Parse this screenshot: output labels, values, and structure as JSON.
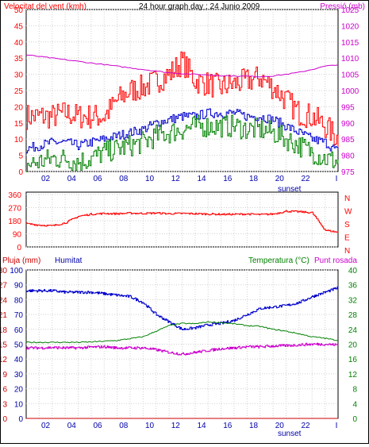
{
  "chart_data": [
    {
      "type": "line",
      "title": "24 hour graph day : 24 Junio 2009",
      "left_axis_label": "Velocitat del vent (kmh)",
      "right_axis_label": "Pressió (mb)",
      "left_ticks": [
        "0",
        "5",
        "10",
        "15",
        "20",
        "25",
        "30",
        "35",
        "40",
        "45",
        "50"
      ],
      "right_ticks": [
        "975",
        "980",
        "985",
        "990",
        "995",
        "1000",
        "1005",
        "1010",
        "1015",
        "1020",
        "1025"
      ],
      "ylim_left": [
        0,
        50
      ],
      "ylim_right": [
        975,
        1025
      ],
      "x_ticks": [
        "02",
        "04",
        "06",
        "08",
        "10",
        "12",
        "14",
        "16",
        "18",
        "20",
        "22",
        "I"
      ],
      "sunset_label": "sunset",
      "x": [
        0,
        1,
        2,
        3,
        4,
        5,
        6,
        7,
        8,
        9,
        10,
        11,
        12,
        13,
        14,
        15,
        16,
        17,
        18,
        19,
        20,
        21,
        22,
        23,
        24
      ],
      "series": [
        {
          "key": "gust",
          "axis": "left",
          "color": "#ff0000",
          "values": [
            17,
            17,
            17,
            18,
            17,
            17,
            17,
            22,
            25,
            26,
            28,
            30,
            34,
            28,
            27,
            26,
            27,
            28,
            29,
            26,
            22,
            18,
            17,
            14,
            10
          ]
        },
        {
          "key": "wind_avg",
          "axis": "left",
          "color": "#0000cc",
          "values": [
            7,
            8,
            9,
            9,
            8,
            9,
            10,
            11,
            12,
            13,
            15,
            16,
            17,
            17,
            18,
            18,
            18,
            17,
            17,
            16,
            14,
            12,
            10,
            9,
            6
          ]
        },
        {
          "key": "wind_low",
          "axis": "left",
          "color": "#008000",
          "values": [
            2,
            3,
            4,
            4,
            3,
            4,
            6,
            7,
            8,
            9,
            11,
            12,
            13,
            14,
            14,
            14,
            14,
            13,
            13,
            12,
            10,
            8,
            6,
            4,
            3
          ]
        },
        {
          "key": "pressure",
          "axis": "right",
          "color": "#cc00cc",
          "values": [
            1011,
            1010.5,
            1010,
            1009.5,
            1009,
            1008.5,
            1008,
            1007.5,
            1007,
            1006.5,
            1006,
            1005.5,
            1005.2,
            1005,
            1004.8,
            1004.6,
            1004.5,
            1004.4,
            1004.3,
            1004.5,
            1005,
            1005.6,
            1006.5,
            1007.5,
            1008
          ]
        }
      ],
      "grid": true
    },
    {
      "type": "line",
      "left_ticks": [
        "0",
        "90",
        "180",
        "270",
        "360"
      ],
      "right_ticks": [
        "N",
        "W",
        "S",
        "E",
        "N"
      ],
      "ylim_left": [
        0,
        360
      ],
      "x": [
        0,
        1,
        2,
        3,
        4,
        5,
        6,
        7,
        8,
        9,
        10,
        11,
        12,
        13,
        14,
        15,
        16,
        17,
        18,
        19,
        20,
        21,
        22,
        23,
        24
      ],
      "series": [
        {
          "key": "wind_dir",
          "axis": "left",
          "color": "#ff0000",
          "values": [
            160,
            150,
            145,
            165,
            210,
            225,
            230,
            228,
            232,
            230,
            233,
            228,
            230,
            228,
            226,
            224,
            224,
            226,
            222,
            226,
            245,
            242,
            235,
            115,
            100
          ]
        }
      ],
      "grid": true
    },
    {
      "type": "line",
      "labels": {
        "rain": "Pluja (mm)",
        "humidity": "Humitat",
        "temperature": "Temperatura (°C)",
        "dewpoint": "Punt rosada"
      },
      "rain_ticks": [
        "0",
        "3",
        "6",
        "9",
        "12",
        "15",
        "18",
        "21",
        "24",
        "27",
        "30"
      ],
      "humidity_ticks": [
        "0",
        "10",
        "20",
        "30",
        "40",
        "50",
        "60",
        "70",
        "80",
        "90",
        "100"
      ],
      "temp_ticks": [
        "0",
        "4",
        "8",
        "12",
        "16",
        "20",
        "24",
        "28",
        "32",
        "36",
        "40"
      ],
      "ylim_rain": [
        0,
        30
      ],
      "ylim_humidity": [
        0,
        100
      ],
      "ylim_temp": [
        0,
        40
      ],
      "x_ticks": [
        "02",
        "04",
        "06",
        "08",
        "10",
        "12",
        "14",
        "16",
        "18",
        "20",
        "22",
        "I"
      ],
      "sunset_label": "sunset",
      "x": [
        0,
        1,
        2,
        3,
        4,
        5,
        6,
        7,
        8,
        9,
        10,
        11,
        12,
        13,
        14,
        15,
        16,
        17,
        18,
        19,
        20,
        21,
        22,
        23,
        24
      ],
      "series": [
        {
          "key": "humidity",
          "axis": "humidity",
          "color": "#0000cc",
          "values": [
            86,
            86,
            86,
            85,
            85,
            85,
            84,
            83,
            82,
            78,
            70,
            65,
            60,
            61,
            63,
            64,
            66,
            70,
            74,
            75,
            76,
            78,
            82,
            85,
            88
          ]
        },
        {
          "key": "temperature",
          "axis": "temp",
          "color": "#008000",
          "values": [
            20.5,
            20.5,
            20.5,
            20.5,
            20.5,
            20.6,
            20.8,
            21,
            21.5,
            22,
            23.5,
            25,
            25.6,
            25.5,
            26,
            25.8,
            25.5,
            25,
            24.8,
            24,
            23.5,
            22.8,
            22,
            21.6,
            21
          ]
        },
        {
          "key": "dewpoint",
          "axis": "temp",
          "color": "#cc00cc",
          "values": [
            19,
            19,
            19.1,
            19,
            19,
            19.2,
            19.3,
            19,
            19,
            19,
            18.5,
            17.8,
            17.3,
            17.8,
            18.3,
            18.8,
            19,
            19.3,
            19.3,
            19.5,
            19.6,
            19.8,
            20,
            20,
            19.8
          ]
        },
        {
          "key": "rain",
          "axis": "rain",
          "color": "#cc0000",
          "values": [
            0,
            0,
            0,
            0,
            0,
            0,
            0,
            0,
            0,
            0,
            0,
            0,
            0,
            0,
            0,
            0,
            0,
            0,
            0,
            0,
            0,
            0,
            0,
            0,
            0
          ]
        }
      ],
      "grid": true
    }
  ]
}
